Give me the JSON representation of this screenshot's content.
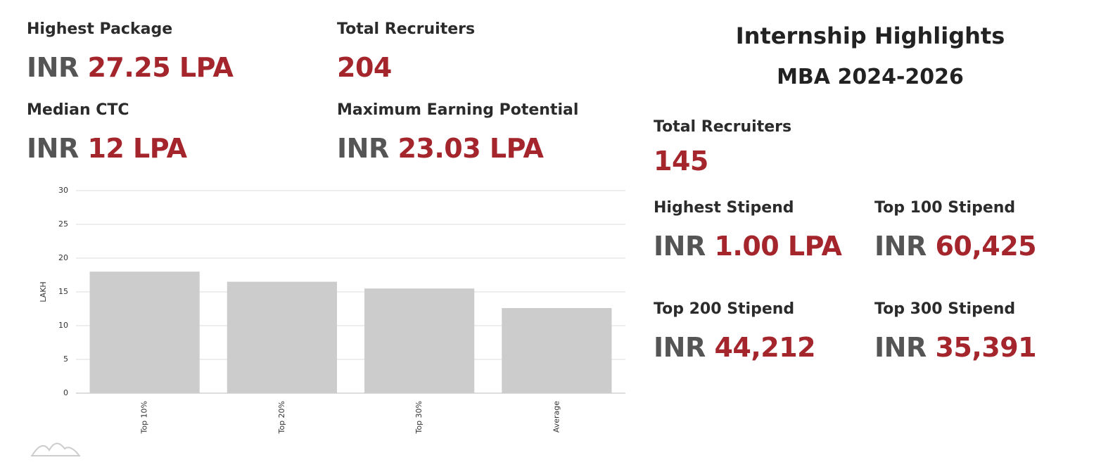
{
  "stats": [
    {
      "label": "Highest Package",
      "prefix": "INR",
      "value": "27.25 LPA"
    },
    {
      "label": "Total Recruiters",
      "value": "204"
    },
    {
      "label": "Median CTC",
      "prefix": "INR",
      "value": "12 LPA"
    },
    {
      "label": "Maximum Earning Potential",
      "prefix": "INR",
      "value": "23.03 LPA"
    }
  ],
  "internship": {
    "title": "Internship Highlights",
    "subtitle": "MBA 2024-2026",
    "total": {
      "label": "Total Recruiters",
      "value": "145"
    },
    "stats": [
      {
        "label": "Highest Stipend",
        "prefix": "INR",
        "value": "1.00 LPA"
      },
      {
        "label": "Top 100 Stipend",
        "prefix": "INR",
        "value": "60,425"
      },
      {
        "label": "Top 200 Stipend",
        "prefix": "INR",
        "value": "44,212"
      },
      {
        "label": "Top 300 Stipend",
        "prefix": "INR",
        "value": "35,391"
      }
    ]
  },
  "chart_data": {
    "type": "bar",
    "y_label": "LAKH",
    "categories": [
      "Top 10%",
      "Top 20%",
      "Top 30%",
      "Average"
    ],
    "values": [
      18,
      16.5,
      15.5,
      12.6
    ],
    "color": "#cccccc",
    "ylim": [
      0,
      30
    ],
    "yticks": [
      0,
      5,
      10,
      15,
      20,
      25,
      30
    ],
    "grid": true
  }
}
